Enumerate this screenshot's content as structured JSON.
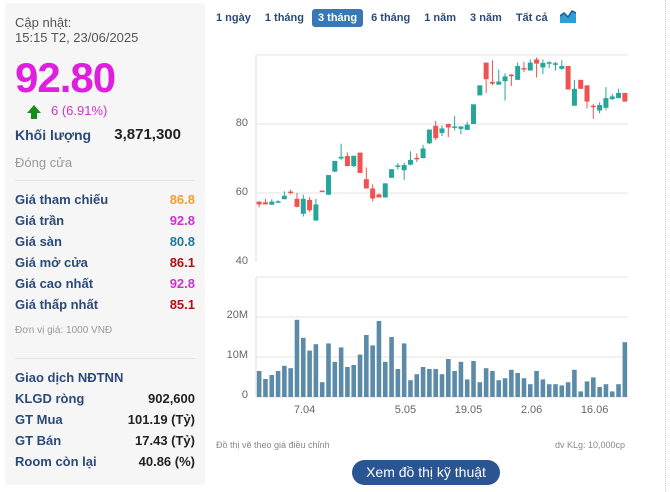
{
  "summary": {
    "update_label": "Cập nhật:",
    "update_time": "15:15 T2, 23/06/2025",
    "price": "92.80",
    "change": "6 (6.91%)",
    "volume_label": "Khối lượng",
    "volume": "3,871,300",
    "status": "Đóng cửa"
  },
  "prices": [
    {
      "label": "Giá tham chiếu",
      "value": "86.8",
      "color": "#f0a030"
    },
    {
      "label": "Giá trần",
      "value": "92.8",
      "color": "#cc33cc"
    },
    {
      "label": "Giá sàn",
      "value": "80.8",
      "color": "#1e7a9a"
    },
    {
      "label": "Giá mở cửa",
      "value": "86.1",
      "color": "#b01010"
    },
    {
      "label": "Giá cao nhất",
      "value": "92.8",
      "color": "#cc33cc"
    },
    {
      "label": "Giá thấp nhất",
      "value": "85.1",
      "color": "#b01010"
    }
  ],
  "price_unit": "Đơn vị giá: 1000 VNĐ",
  "foreign": {
    "title": "Giao dịch NĐTNN",
    "rows": [
      {
        "label": "KLGD ròng",
        "value": "902,600"
      },
      {
        "label": "GT Mua",
        "value": "101.19 (Tỷ)"
      },
      {
        "label": "GT Bán",
        "value": "17.43 (Tỷ)"
      },
      {
        "label": "Room còn lại",
        "value": "40.86 (%)"
      }
    ]
  },
  "tabs": [
    "1 ngày",
    "1 tháng",
    "3 tháng",
    "6 tháng",
    "1 năm",
    "3 năm",
    "Tất cả"
  ],
  "active_tab": 2,
  "footer_note": "Đồ thị vẽ theo giá điều chỉnh",
  "footer_unit": "dv KLg: 10,000cp",
  "tech_button": "Xem đồ thị kỹ thuật",
  "chart_data": {
    "type": "candlestick",
    "price_ylim": [
      40,
      100
    ],
    "price_ticks": [
      "40",
      "60",
      "80"
    ],
    "volume_ylim": [
      0,
      30
    ],
    "volume_ticks": [
      "0",
      "10M",
      "20M"
    ],
    "colors": {
      "up": "#26a69a",
      "down": "#ef5350",
      "volume": "#5b8ba8"
    },
    "x_ticks": [
      {
        "label": "7.04",
        "index": 8
      },
      {
        "label": "5.05",
        "index": 24
      },
      {
        "label": "19.05",
        "index": 34
      },
      {
        "label": "2.06",
        "index": 44
      },
      {
        "label": "16.06",
        "index": 54
      }
    ],
    "ohlc": [
      [
        57.5,
        57.5,
        55.8,
        56.7
      ],
      [
        57.3,
        58.3,
        56.7,
        56.7
      ],
      [
        56.6,
        58.2,
        56.6,
        57.5
      ],
      [
        57.4,
        57.9,
        57.2,
        57.6
      ],
      [
        58.2,
        60.5,
        58.2,
        59.2
      ],
      [
        60.4,
        61,
        59.6,
        60.3
      ],
      [
        58.3,
        60,
        55.8,
        56
      ],
      [
        54,
        59.5,
        53.2,
        58.3
      ],
      [
        58,
        58.8,
        54.5,
        55
      ],
      [
        52,
        58.3,
        52,
        56.7
      ],
      [
        60.7,
        60.7,
        60.6,
        60.6
      ],
      [
        59.5,
        65.2,
        59.5,
        65.2
      ],
      [
        66.2,
        69.3,
        66,
        69.3
      ],
      [
        70,
        74.3,
        69.6,
        70.5
      ],
      [
        70.7,
        71.7,
        67.8,
        67.8
      ],
      [
        67.8,
        70.8,
        67.5,
        70.8
      ],
      [
        71.7,
        71.7,
        65.8,
        65.8
      ],
      [
        64,
        67.4,
        61.3,
        61.3
      ],
      [
        61.3,
        62.5,
        57.6,
        58.4
      ],
      [
        59.6,
        59.8,
        58.7,
        58.7
      ],
      [
        58.7,
        62.8,
        58.7,
        62.8
      ],
      [
        64.4,
        66.9,
        64.4,
        66.9
      ],
      [
        67.6,
        68.7,
        66.8,
        68
      ],
      [
        66.6,
        68.8,
        63.8,
        68.1
      ],
      [
        68.2,
        72.1,
        68,
        69.6
      ],
      [
        70.2,
        71.5,
        69,
        70
      ],
      [
        70.1,
        73.9,
        70.1,
        72.9
      ],
      [
        74.4,
        78.4,
        74.2,
        78.4
      ],
      [
        79.5,
        80.9,
        75.3,
        75.9
      ],
      [
        77.4,
        79.6,
        76.5,
        78.7
      ],
      [
        80,
        80.1,
        76.2,
        79
      ],
      [
        78.9,
        82.3,
        78.1,
        79.3
      ],
      [
        78.6,
        79.3,
        77,
        79.3
      ],
      [
        78.3,
        80.7,
        78.3,
        79.8
      ],
      [
        80,
        85.7,
        80,
        85.7
      ],
      [
        88.3,
        91.2,
        88.3,
        91.2
      ],
      [
        97.8,
        97.8,
        89,
        93
      ],
      [
        92.2,
        98.5,
        91.2,
        91.7
      ],
      [
        91.4,
        95.8,
        91.4,
        92.3
      ],
      [
        92.4,
        94.7,
        86.8,
        93.8
      ],
      [
        94.3,
        94.5,
        91,
        94
      ],
      [
        92.8,
        97.8,
        92.8,
        96.8
      ],
      [
        96.2,
        98,
        95,
        96.1
      ],
      [
        95.5,
        98.7,
        95.5,
        97.8
      ],
      [
        98.7,
        99.3,
        93.5,
        97.5
      ],
      [
        96.4,
        98.7,
        94.5,
        97.7
      ],
      [
        97.5,
        98.2,
        96.2,
        97.9
      ],
      [
        97.3,
        98,
        95.5,
        97.6
      ],
      [
        96,
        98.5,
        95.7,
        96.8
      ],
      [
        96.8,
        96.8,
        90,
        90
      ],
      [
        85.3,
        92.8,
        85.3,
        90.2
      ],
      [
        92.8,
        92.8,
        90.2,
        90.2
      ],
      [
        91.2,
        91.2,
        84.5,
        86.5
      ],
      [
        85.3,
        85.8,
        81.5,
        85
      ],
      [
        83.9,
        86.3,
        83.1,
        85.5
      ],
      [
        84.7,
        90.7,
        84,
        87.5
      ],
      [
        87.2,
        88.8,
        86.9,
        88
      ],
      [
        87.5,
        90.2,
        87.5,
        89
      ],
      [
        89,
        89,
        86.5,
        86.5
      ]
    ],
    "volume_millions": [
      6.5,
      4.5,
      5.5,
      6.5,
      7.8,
      7.2,
      19.3,
      14.8,
      11.6,
      13.2,
      3.7,
      13.4,
      8.8,
      12.4,
      7.5,
      8,
      10.6,
      15.5,
      12.9,
      19,
      8.8,
      15,
      7,
      13.4,
      4.2,
      5.7,
      7.5,
      7,
      7,
      5.7,
      9.5,
      6.5,
      8.8,
      4.4,
      9,
      3.7,
      7.2,
      6.5,
      4.2,
      4.7,
      6.8,
      6,
      4.7,
      3.2,
      6.5,
      4.4,
      3.2,
      3.2,
      2.9,
      3.7,
      6.8,
      1.4,
      3.9,
      4.9,
      2.5,
      3.2,
      1.4,
      3.2,
      13.7
    ]
  }
}
